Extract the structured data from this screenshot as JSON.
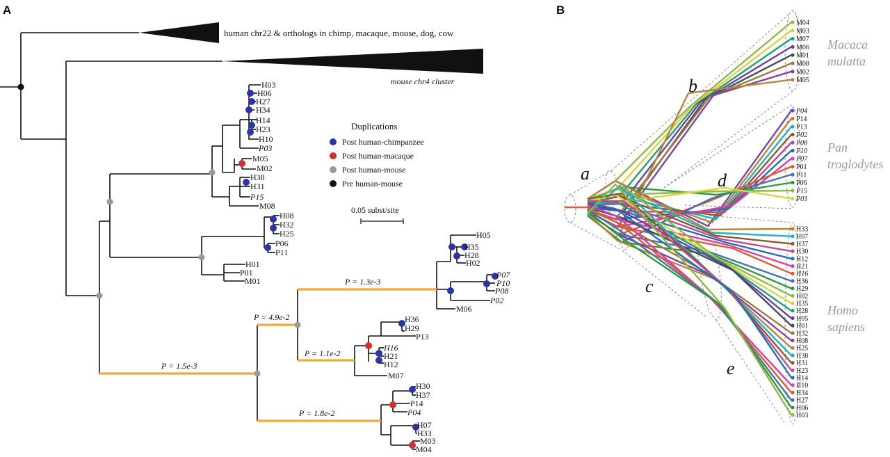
{
  "panel_a": {
    "label": "A",
    "top_clade_label": "human chr22 & orthologs in chimp, macaque, mouse, dog, cow",
    "mouse_clade_label": "mouse chr4 cluster",
    "legend_title": "Duplications",
    "legend": [
      {
        "label": "Post human-chimpanzee",
        "color": "#2b35a6"
      },
      {
        "label": "Post human-macaque",
        "color": "#d0312d"
      },
      {
        "label": "Post human-mouse",
        "color": "#9a9a9a"
      },
      {
        "label": "Pre human-mouse",
        "color": "#111111"
      }
    ],
    "scale_label": "0.05 subst/site",
    "pvalues": [
      "P = 1.5e-3",
      "P = 4.9e-2",
      "P = 1.3e-3",
      "P = 1.1e-2",
      "P = 1.8e-2"
    ],
    "leaves": [
      "H03",
      "H06",
      "H27",
      "H34",
      "H14",
      "H23",
      "H10",
      "P03",
      "M05",
      "M02",
      "H38",
      "H31",
      "P15",
      "M08",
      "H08",
      "H32",
      "H25",
      "P06",
      "P11",
      "H01",
      "P01",
      "M01",
      "H05",
      "H35",
      "H28",
      "H02",
      "P07",
      "P10",
      "P08",
      "P02",
      "M06",
      "H36",
      "H29",
      "P13",
      "H16",
      "H21",
      "H12",
      "M07",
      "H30",
      "H37",
      "P14",
      "P04",
      "H07",
      "H33",
      "M03",
      "M04"
    ]
  },
  "panel_b": {
    "label": "B",
    "segments": [
      "a",
      "b",
      "c",
      "d",
      "e"
    ],
    "species": [
      "Macaca mulatta",
      "Pan troglodytes",
      "Homo sapiens"
    ],
    "macaque_leaves": [
      "M04",
      "M03",
      "M07",
      "M06",
      "M01",
      "M08",
      "M02",
      "M05"
    ],
    "chimp_leaves": [
      "P04",
      "P14",
      "P13",
      "P02",
      "P08",
      "P10",
      "P07",
      "P01",
      "P11",
      "P06",
      "P15",
      "P03"
    ],
    "human_leaves": [
      "H33",
      "H07",
      "H37",
      "H30",
      "H12",
      "H21",
      "H16",
      "H36",
      "H29",
      "H02",
      "H35",
      "H28",
      "H05",
      "H01",
      "H32",
      "H08",
      "H25",
      "H38",
      "H31",
      "H23",
      "H14",
      "H10",
      "H34",
      "H27",
      "H06",
      "H03"
    ],
    "italic_leaves": [
      "P04",
      "P02",
      "P08",
      "P10",
      "P07",
      "P15",
      "P03",
      "H16"
    ]
  }
}
